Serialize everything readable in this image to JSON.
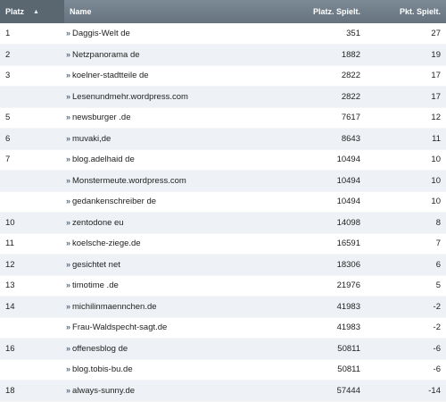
{
  "table": {
    "headers": {
      "platz": "Platz",
      "name": "Name",
      "platz_spielt": "Platz. Spielt.",
      "pkt_spielt": "Pkt. Spielt."
    },
    "rows": [
      {
        "platz": "1",
        "name": "Daggis-Welt de",
        "platz_spielt": "351",
        "pkt_spielt": "27"
      },
      {
        "platz": "2",
        "name": "Netzpanorama de",
        "platz_spielt": "1882",
        "pkt_spielt": "19"
      },
      {
        "platz": "3",
        "name": "koelner-stadtteile de",
        "platz_spielt": "2822",
        "pkt_spielt": "17"
      },
      {
        "platz": "",
        "name": "Lesenundmehr.wordpress.com",
        "platz_spielt": "2822",
        "pkt_spielt": "17"
      },
      {
        "platz": "5",
        "name": "newsburger .de",
        "platz_spielt": "7617",
        "pkt_spielt": "12"
      },
      {
        "platz": "6",
        "name": "muvaki,de",
        "platz_spielt": "8643",
        "pkt_spielt": "11"
      },
      {
        "platz": "7",
        "name": "blog.adelhaid de",
        "platz_spielt": "10494",
        "pkt_spielt": "10"
      },
      {
        "platz": "",
        "name": "Monstermeute.wordpress.com",
        "platz_spielt": "10494",
        "pkt_spielt": "10"
      },
      {
        "platz": "",
        "name": "gedankenschreiber de",
        "platz_spielt": "10494",
        "pkt_spielt": "10"
      },
      {
        "platz": "10",
        "name": "zentodone eu",
        "platz_spielt": "14098",
        "pkt_spielt": "8"
      },
      {
        "platz": "11",
        "name": "koelsche-ziege.de",
        "platz_spielt": "16591",
        "pkt_spielt": "7"
      },
      {
        "platz": "12",
        "name": "gesichtet net",
        "platz_spielt": "18306",
        "pkt_spielt": "6"
      },
      {
        "platz": "13",
        "name": "timotime .de",
        "platz_spielt": "21976",
        "pkt_spielt": "5"
      },
      {
        "platz": "14",
        "name": "michilinmaennchen.de",
        "platz_spielt": "41983",
        "pkt_spielt": "-2"
      },
      {
        "platz": "",
        "name": "Frau-Waldspecht-sagt.de",
        "platz_spielt": "41983",
        "pkt_spielt": "-2"
      },
      {
        "platz": "16",
        "name": "offenesblog de",
        "platz_spielt": "50811",
        "pkt_spielt": "-6"
      },
      {
        "platz": "",
        "name": "blog.tobis-bu.de",
        "platz_spielt": "50811",
        "pkt_spielt": "-6"
      },
      {
        "platz": "18",
        "name": "always-sunny.de",
        "platz_spielt": "57444",
        "pkt_spielt": "-14"
      }
    ]
  },
  "icons": {
    "sort": "sort-ascending-icon",
    "row_link": "double-chevron-right-icon"
  },
  "colors": {
    "header_bg": "#6d7b86",
    "header_active_bg": "#5a6670",
    "row_alt_bg": "#eef2f6",
    "arrow": "#556a88"
  }
}
